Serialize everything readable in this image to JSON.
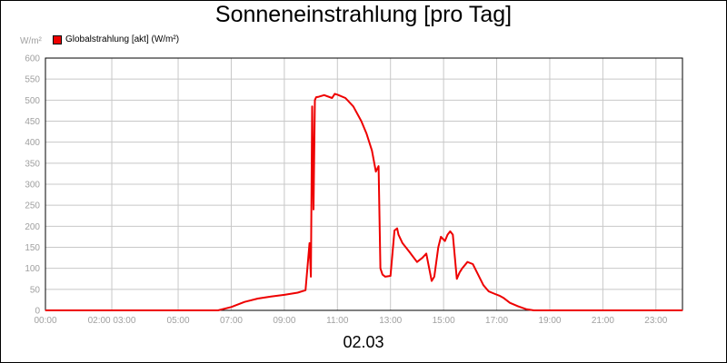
{
  "chart_data": {
    "type": "line",
    "title": "Sonneneinstrahlung [pro Tag]",
    "ylabel": "W/m²",
    "xlabel": "02.03",
    "ylim": [
      0,
      600
    ],
    "xlim_hours": [
      0,
      24
    ],
    "y_ticks": [
      "0",
      "50",
      "100",
      "150",
      "200",
      "250",
      "300",
      "350",
      "400",
      "450",
      "500",
      "550",
      "600"
    ],
    "x_ticks": [
      {
        "h": 0,
        "label": "00:00"
      },
      {
        "h": 2.5,
        "label": "02:00 03:00"
      },
      {
        "h": 5,
        "label": "05:00"
      },
      {
        "h": 7,
        "label": "07:00"
      },
      {
        "h": 9,
        "label": "09:00"
      },
      {
        "h": 11,
        "label": "11:00"
      },
      {
        "h": 13,
        "label": "13:00"
      },
      {
        "h": 15,
        "label": "15:00"
      },
      {
        "h": 17,
        "label": "17:00"
      },
      {
        "h": 19,
        "label": "19:00"
      },
      {
        "h": 21,
        "label": "21:00"
      },
      {
        "h": 23,
        "label": "23:00"
      }
    ],
    "grid": true,
    "legend_position": "top-left",
    "series": [
      {
        "name": "Globalstrahlung [akt] (W/m²)",
        "color": "#ee0000",
        "x_hours": [
          0,
          6.5,
          7.0,
          7.5,
          8.0,
          8.5,
          9.0,
          9.5,
          9.8,
          9.95,
          10.0,
          10.05,
          10.1,
          10.15,
          10.2,
          10.3,
          10.5,
          10.8,
          10.9,
          11.0,
          11.3,
          11.6,
          11.9,
          12.1,
          12.3,
          12.45,
          12.55,
          12.62,
          12.7,
          12.8,
          13.0,
          13.15,
          13.25,
          13.3,
          13.45,
          13.7,
          14.0,
          14.2,
          14.35,
          14.55,
          14.65,
          14.8,
          14.9,
          15.05,
          15.15,
          15.25,
          15.35,
          15.5,
          15.6,
          15.7,
          15.9,
          16.1,
          16.3,
          16.5,
          16.7,
          16.9,
          17.1,
          17.25,
          17.5,
          17.8,
          18.1,
          18.4,
          19.0,
          24.0
        ],
        "values": [
          0,
          0,
          8,
          20,
          28,
          33,
          37,
          42,
          48,
          160,
          80,
          485,
          240,
          500,
          507,
          508,
          512,
          505,
          515,
          513,
          505,
          485,
          450,
          420,
          380,
          330,
          343,
          100,
          85,
          80,
          82,
          190,
          195,
          180,
          160,
          140,
          115,
          125,
          135,
          70,
          80,
          150,
          175,
          165,
          180,
          188,
          180,
          75,
          90,
          100,
          115,
          110,
          85,
          60,
          45,
          40,
          35,
          30,
          18,
          10,
          3,
          0,
          0,
          0
        ]
      }
    ]
  }
}
